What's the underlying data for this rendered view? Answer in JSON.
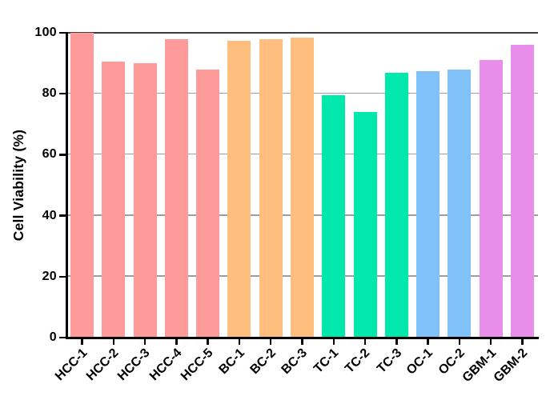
{
  "chart_data": {
    "type": "bar",
    "title": "",
    "xlabel": "",
    "ylabel": "Cell Viability (%)",
    "ylim": [
      0,
      100
    ],
    "yticks": [
      0,
      20,
      40,
      60,
      80,
      100
    ],
    "grid": true,
    "legend_position": "none",
    "categories": [
      "HCC-1",
      "HCC-2",
      "HCC-3",
      "HCC-4",
      "HCC-5",
      "BC-1",
      "BC-2",
      "BC-3",
      "TC-1",
      "TC-2",
      "TC-3",
      "OC-1",
      "OC-2",
      "GBM-1",
      "GBM-2"
    ],
    "values": [
      100,
      90.5,
      90,
      98,
      88,
      97.5,
      98,
      98.5,
      79.5,
      74,
      87,
      87.5,
      88,
      91,
      96
    ],
    "groups": [
      "HCC",
      "HCC",
      "HCC",
      "HCC",
      "HCC",
      "BC",
      "BC",
      "BC",
      "TC",
      "TC",
      "TC",
      "OC",
      "OC",
      "GBM",
      "GBM"
    ],
    "group_colors": {
      "HCC": "#FF9A9A",
      "BC": "#FFBE7D",
      "TC": "#00E8AC",
      "OC": "#7FC1F8",
      "GBM": "#E98DEB"
    },
    "axis_color": "#000000",
    "gridline_color": "#9e9e9e",
    "top_line_color": "#3d3d3d",
    "background_color": "#ffffff"
  }
}
